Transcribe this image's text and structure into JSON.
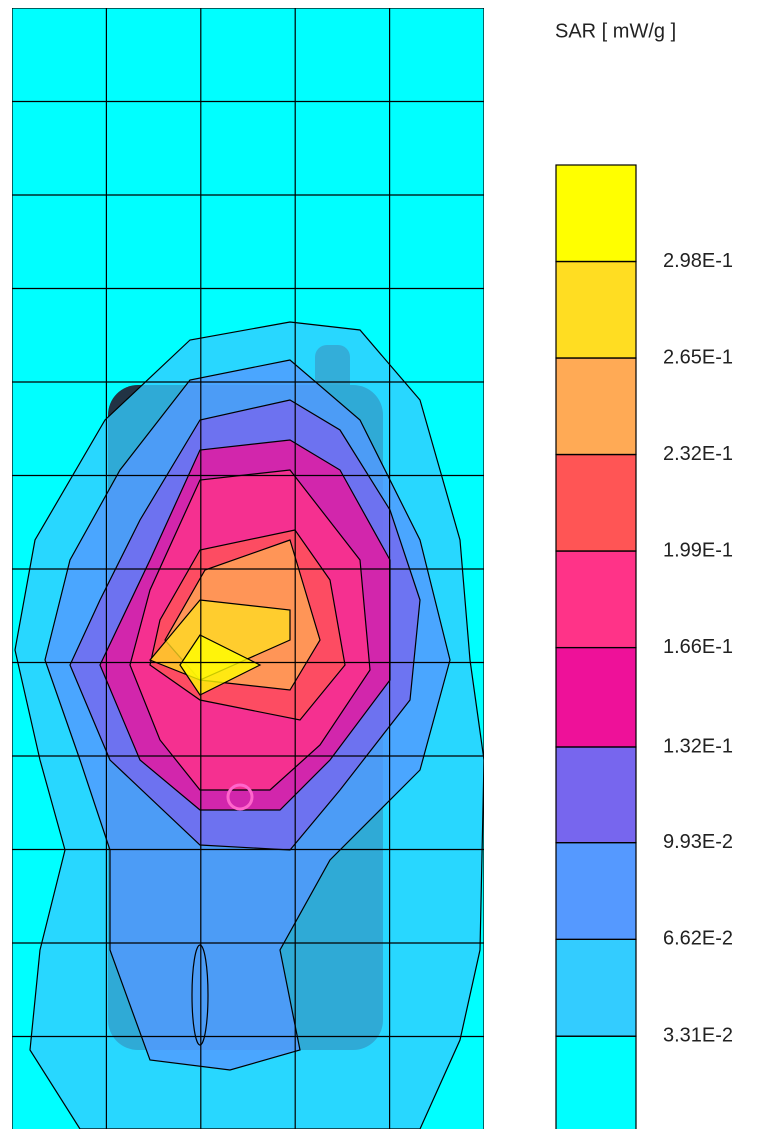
{
  "chart_data": {
    "type": "contour",
    "colorbar_label": "SAR [ mW/g ]",
    "zlim": [
      0,
      0.331
    ],
    "zticks": [
      {
        "value": 0.0331,
        "label": "3.31E-2"
      },
      {
        "value": 0.0662,
        "label": "6.62E-2"
      },
      {
        "value": 0.0993,
        "label": "9.93E-2"
      },
      {
        "value": 0.132,
        "label": "1.32E-1"
      },
      {
        "value": 0.166,
        "label": "1.66E-1"
      },
      {
        "value": 0.199,
        "label": "1.99E-1"
      },
      {
        "value": 0.232,
        "label": "2.32E-1"
      },
      {
        "value": 0.265,
        "label": "2.65E-1"
      },
      {
        "value": 0.298,
        "label": "2.98E-1"
      }
    ],
    "colors": [
      "#00ffff",
      "#33ccff",
      "#5599ff",
      "#7766ee",
      "#ee1199",
      "#ff3388",
      "#ff5555",
      "#ffaa55",
      "#ffdd22",
      "#ffff00"
    ],
    "grid": true
  }
}
